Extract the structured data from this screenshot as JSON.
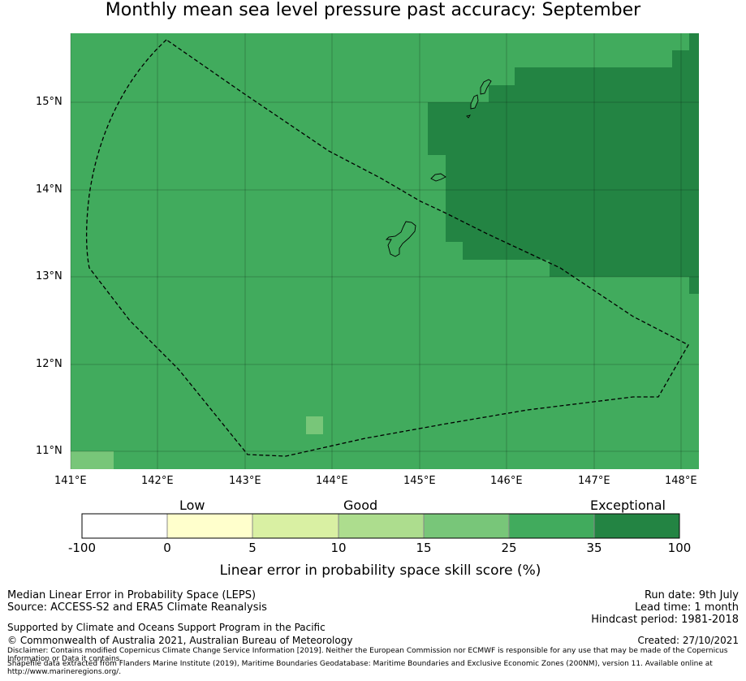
{
  "title": "Monthly mean sea level pressure past accuracy: September",
  "map": {
    "lon_labels": [
      "141°E",
      "142°E",
      "143°E",
      "144°E",
      "145°E",
      "146°E",
      "147°E",
      "148°E"
    ],
    "lat_labels": [
      "15°N",
      "14°N",
      "13°N",
      "12°N",
      "11°N"
    ],
    "lon_range": [
      141.0,
      148.2
    ],
    "lat_range": [
      10.8,
      15.8
    ],
    "base_color": "#41ab5d",
    "exceptional_color": "#238443",
    "light_color": "#78c679",
    "boundary_style": "dashed"
  },
  "colorbar": {
    "category_labels": [
      "Low",
      "Good",
      "Exceptional"
    ],
    "ticks": [
      "-100",
      "0",
      "5",
      "10",
      "15",
      "25",
      "35",
      "100"
    ],
    "colors": [
      "#ffffff",
      "#ffffcc",
      "#d9f0a3",
      "#addd8e",
      "#78c679",
      "#41ab5d",
      "#238443"
    ],
    "label": "Linear error in probability space skill score (%)"
  },
  "footer": {
    "left_line1": "Median Linear Error in Probability Space (LEPS)",
    "left_line2": "Source: ACCESS-S2 and ERA5 Climate Reanalysis",
    "supported": "Supported by Climate and Oceans Support Program in the Pacific",
    "copyright": "© Commonwealth of Australia 2021, Australian Bureau of Meteorology",
    "disclaimer": "Disclaimer: Contains modified Copernicus Climate Change Service Information [2019]. Neither the European Commission nor ECMWF is responsible for any use that may be made of the Copernicus Information or Data it contains.",
    "shapefile": "Shapefile data extracted from Flanders Marine Institute (2019), Maritime Boundaries Geodatabase: Maritime Boundaries and Exclusive Economic Zones (200NM), version 11. Available online at http://www.marineregions.org/.",
    "run_date": "Run date: 9th July",
    "lead_time": "Lead time: 1 month",
    "hindcast": "Hindcast period: 1981-2018",
    "created": "Created: 27/10/2021"
  }
}
